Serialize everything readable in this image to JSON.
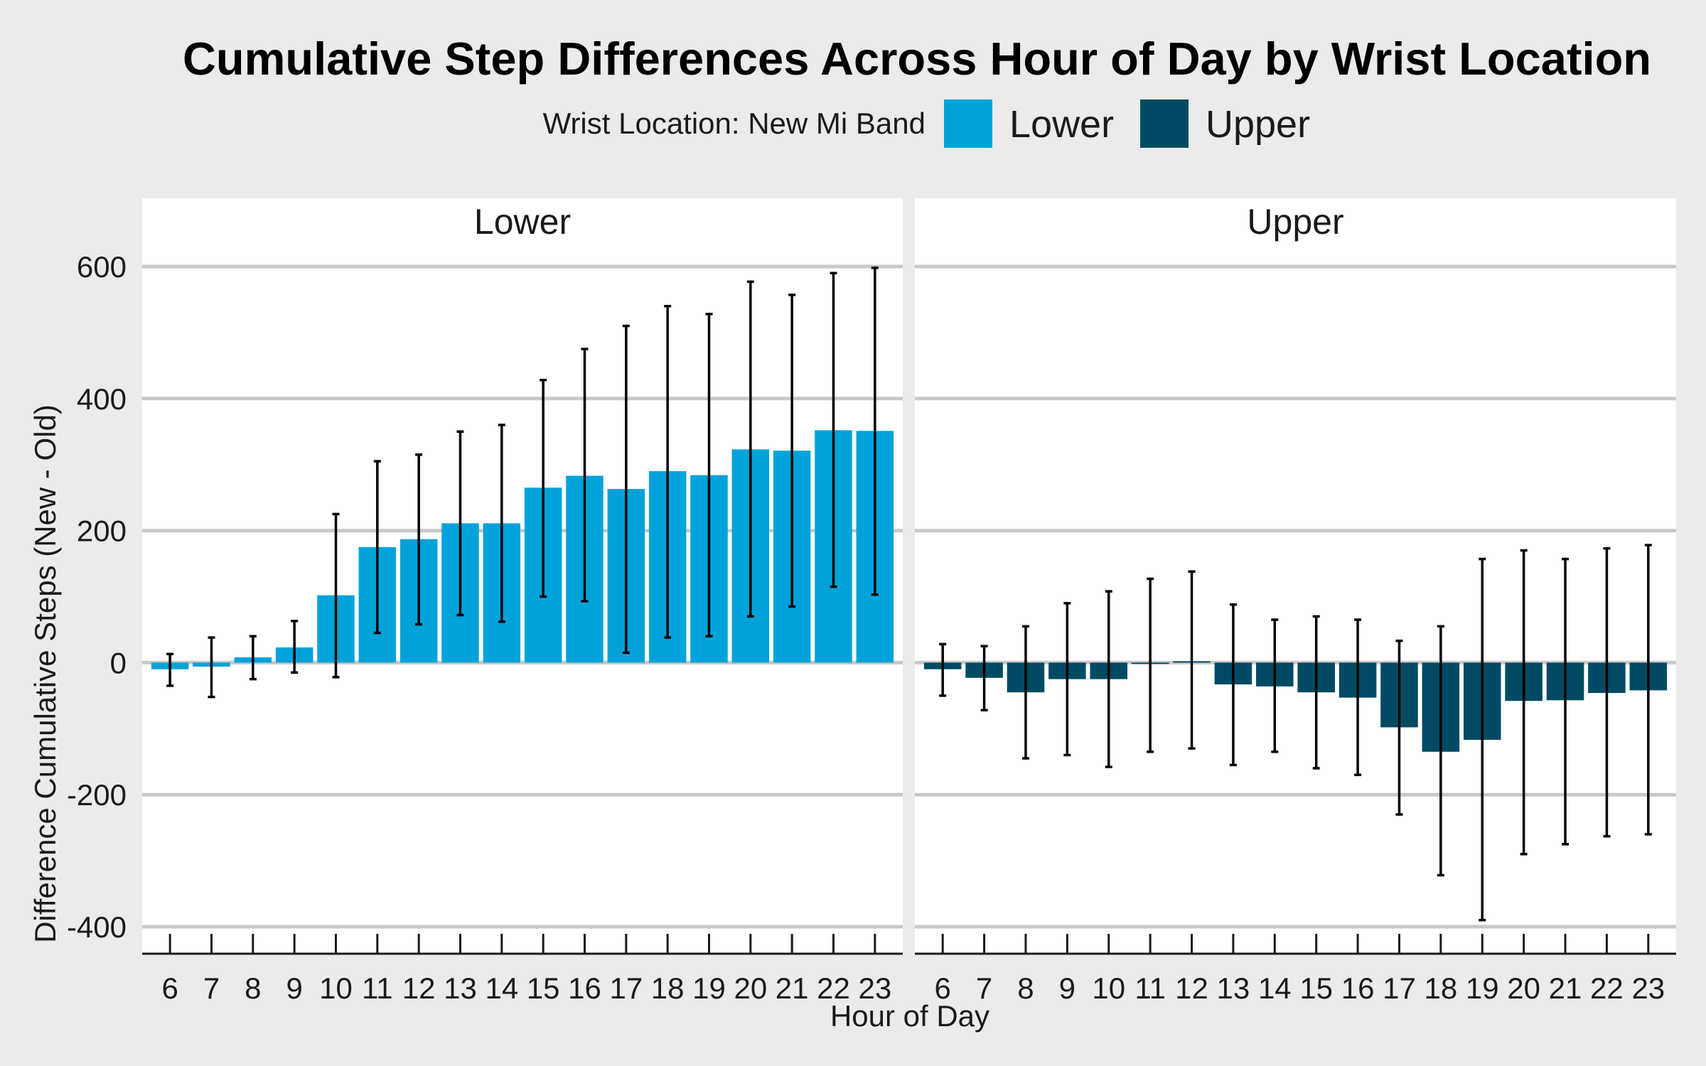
{
  "chart_data": {
    "type": "bar",
    "title": "Cumulative Step Differences Across Hour of Day by Wrist Location",
    "xlabel": "Hour of Day",
    "ylabel": "Difference Cumulative Steps (New - Old)",
    "ylim": [
      -440,
      600
    ],
    "yticks": [
      -400,
      -200,
      0,
      200,
      400,
      600
    ],
    "grid": "horizontal",
    "legend": {
      "title": "Wrist Location: New Mi Band",
      "placement": "top",
      "entries": [
        {
          "label": "Lower",
          "color": "#00a3d9"
        },
        {
          "label": "Upper",
          "color": "#004b63"
        }
      ]
    },
    "categories": [
      "6",
      "7",
      "8",
      "9",
      "10",
      "11",
      "12",
      "13",
      "14",
      "15",
      "16",
      "17",
      "18",
      "19",
      "20",
      "21",
      "22",
      "23"
    ],
    "facets": [
      {
        "name": "Lower",
        "color": "#00a3d9",
        "values": [
          -10,
          -6,
          8,
          23,
          102,
          175,
          187,
          211,
          211,
          265,
          283,
          263,
          290,
          284,
          323,
          321,
          352,
          351
        ],
        "err_low": [
          -35,
          -52,
          -25,
          -15,
          -22,
          45,
          58,
          72,
          62,
          100,
          93,
          15,
          38,
          40,
          70,
          85,
          115,
          103
        ],
        "err_high": [
          13,
          38,
          40,
          63,
          225,
          305,
          315,
          350,
          360,
          428,
          475,
          510,
          540,
          528,
          577,
          557,
          590,
          598
        ]
      },
      {
        "name": "Upper",
        "color": "#004b63",
        "values": [
          -10,
          -23,
          -45,
          -25,
          -25,
          -2,
          2,
          -33,
          -36,
          -45,
          -53,
          -98,
          -135,
          -117,
          -58,
          -57,
          -46,
          -42
        ],
        "err_low": [
          -50,
          -72,
          -145,
          -140,
          -158,
          -135,
          -130,
          -155,
          -135,
          -160,
          -170,
          -230,
          -322,
          -390,
          -290,
          -275,
          -263,
          -260
        ],
        "err_high": [
          28,
          25,
          55,
          90,
          108,
          127,
          138,
          88,
          65,
          70,
          65,
          33,
          55,
          157,
          170,
          157,
          173,
          178
        ]
      }
    ]
  }
}
